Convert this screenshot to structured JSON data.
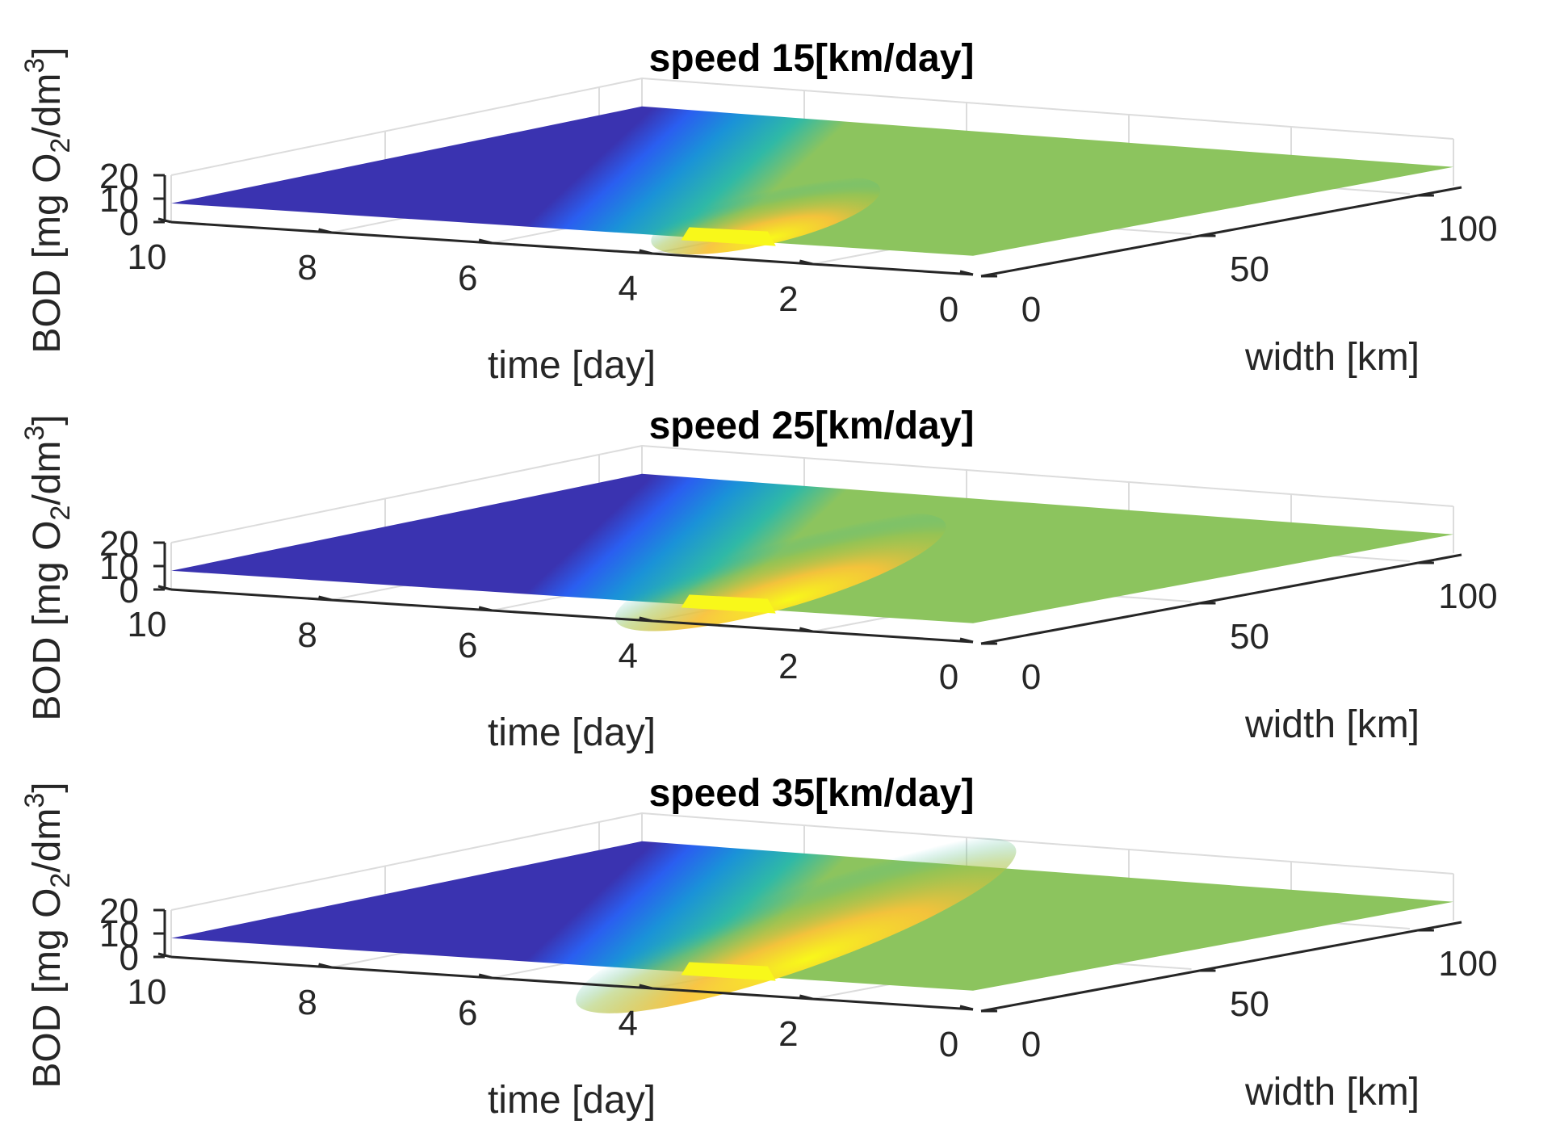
{
  "chart_data": [
    {
      "type": "surface",
      "title": "speed 15[km/day]",
      "speed": 15,
      "xlabel": "time [day]",
      "ylabel": "width [km]",
      "zlabel": {
        "base": "BOD [mg O",
        "sub": "2",
        "mid": "/dm",
        "sup": "3",
        "end": "]"
      },
      "x_ticks": [
        "0",
        "2",
        "4",
        "6",
        "8",
        "10"
      ],
      "y_ticks": [
        "0",
        "50",
        "100"
      ],
      "z_ticks": [
        "0",
        "10",
        "20"
      ],
      "xlim": [
        0,
        10
      ],
      "ylim": [
        0,
        110
      ],
      "zlim": [
        0,
        20
      ],
      "plume_spread": 0.18
    },
    {
      "type": "surface",
      "title": "speed 25[km/day]",
      "speed": 25,
      "xlabel": "time [day]",
      "ylabel": "width [km]",
      "zlabel": {
        "base": "BOD [mg O",
        "sub": "2",
        "mid": "/dm",
        "sup": "3",
        "end": "]"
      },
      "x_ticks": [
        "0",
        "2",
        "4",
        "6",
        "8",
        "10"
      ],
      "y_ticks": [
        "0",
        "50",
        "100"
      ],
      "z_ticks": [
        "0",
        "10",
        "20"
      ],
      "xlim": [
        0,
        10
      ],
      "ylim": [
        0,
        110
      ],
      "zlim": [
        0,
        20
      ],
      "plume_spread": 0.34
    },
    {
      "type": "surface",
      "title": "speed 35[km/day]",
      "speed": 35,
      "xlabel": "time [day]",
      "ylabel": "width [km]",
      "zlabel": {
        "base": "BOD [mg O",
        "sub": "2",
        "mid": "/dm",
        "sup": "3",
        "end": "]"
      },
      "x_ticks": [
        "0",
        "2",
        "4",
        "6",
        "8",
        "10"
      ],
      "y_ticks": [
        "0",
        "50",
        "100"
      ],
      "z_ticks": [
        "0",
        "10",
        "20"
      ],
      "xlim": [
        0,
        10
      ],
      "ylim": [
        0,
        110
      ],
      "zlim": [
        0,
        20
      ],
      "plume_spread": 0.52
    }
  ],
  "colors": {
    "axis": "#262626",
    "grid": "#dcdcdc",
    "colormap": [
      "#3e26a8",
      "#2f5cf5",
      "#1d9ad9",
      "#12b6b9",
      "#49c27d",
      "#b4bd3c",
      "#f8ba3e",
      "#f8f81a"
    ]
  }
}
